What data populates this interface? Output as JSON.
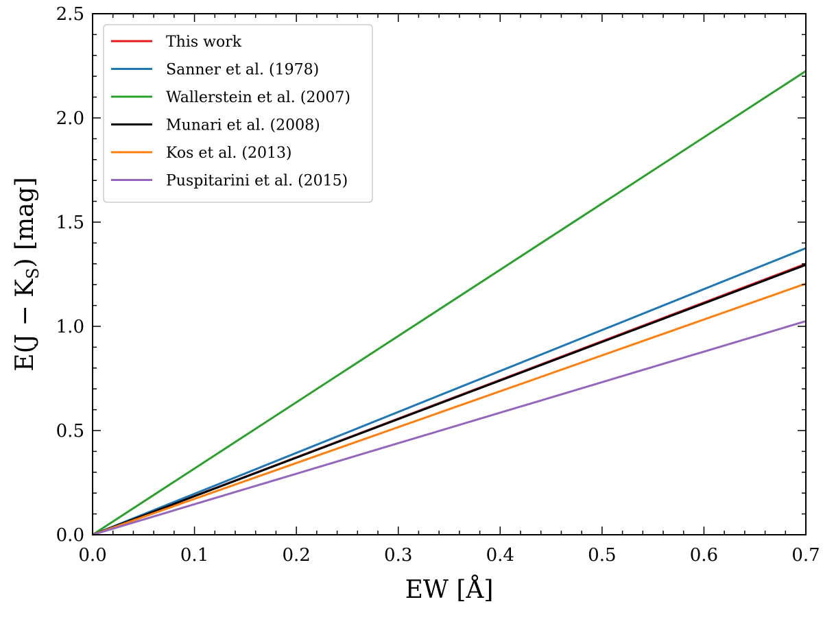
{
  "chart_data": {
    "type": "line",
    "title": "",
    "xlabel": "EW [Å]",
    "ylabel": "E(J − K",
    "ylabel_subscript": "S",
    "ylabel_suffix": ") [mag]",
    "xlim": [
      0.0,
      0.7
    ],
    "ylim": [
      0.0,
      2.5
    ],
    "xticks": [
      "0.0",
      "0.1",
      "0.2",
      "0.3",
      "0.4",
      "0.5",
      "0.6",
      "0.7"
    ],
    "yticks": [
      "0.0",
      "0.5",
      "1.0",
      "1.5",
      "2.0",
      "2.5"
    ],
    "grid": false,
    "legend_position": "top-left",
    "series": [
      {
        "name": "This work",
        "color": "#e41a1c",
        "x": [
          0.0,
          0.7
        ],
        "y": [
          0.0,
          1.3
        ]
      },
      {
        "name": "Sanner et al. (1978)",
        "color": "#1f77b4",
        "x": [
          0.0,
          0.7
        ],
        "y": [
          0.0,
          1.375
        ]
      },
      {
        "name": "Wallerstein et al. (2007)",
        "color": "#2ca02c",
        "x": [
          0.0,
          0.7
        ],
        "y": [
          0.0,
          2.225
        ]
      },
      {
        "name": "Munari et al. (2008)",
        "color": "#000000",
        "x": [
          0.0,
          0.7
        ],
        "y": [
          0.0,
          1.295
        ]
      },
      {
        "name": "Kos et al. (2013)",
        "color": "#ff7f0e",
        "x": [
          0.0,
          0.7
        ],
        "y": [
          0.0,
          1.205
        ]
      },
      {
        "name": "Puspitarini et al. (2015)",
        "color": "#9467bd",
        "x": [
          0.0,
          0.7
        ],
        "y": [
          0.0,
          1.025
        ]
      }
    ]
  }
}
